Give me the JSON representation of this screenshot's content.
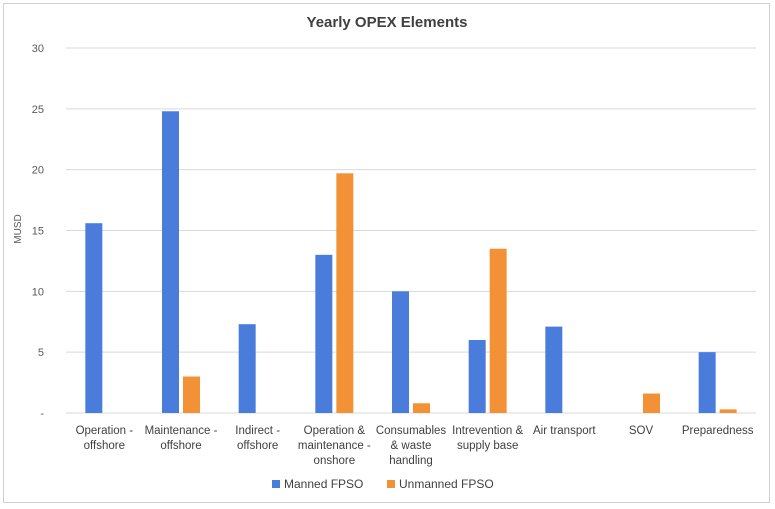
{
  "chart_data": {
    "type": "bar",
    "title": "Yearly OPEX Elements",
    "xlabel": "",
    "ylabel": "MUSD",
    "ylim": [
      0,
      30
    ],
    "yticks": [
      "-",
      "5",
      "10",
      "15",
      "20",
      "25",
      "30"
    ],
    "ytick_values": [
      0,
      5,
      10,
      15,
      20,
      25,
      30
    ],
    "grid": true,
    "legend_position": "bottom",
    "categories": [
      [
        "Operation -",
        "offshore"
      ],
      [
        "Maintenance -",
        "offshore"
      ],
      [
        "Indirect -",
        "offshore"
      ],
      [
        "Operation &",
        "maintenance -",
        "onshore"
      ],
      [
        "Consumables",
        "& waste",
        "handling"
      ],
      [
        "Intrevention &",
        "supply base"
      ],
      [
        "Air transport"
      ],
      [
        "SOV"
      ],
      [
        "Preparedness"
      ]
    ],
    "series": [
      {
        "name": "Manned FPSO",
        "color": "#4a7ddb",
        "values": [
          15.6,
          24.8,
          7.3,
          13.0,
          10.0,
          6.0,
          7.1,
          0,
          5.0
        ]
      },
      {
        "name": "Unmanned FPSO",
        "color": "#f39137",
        "values": [
          0,
          3.0,
          0,
          19.7,
          0.8,
          13.5,
          0,
          1.6,
          0.3
        ]
      }
    ]
  }
}
